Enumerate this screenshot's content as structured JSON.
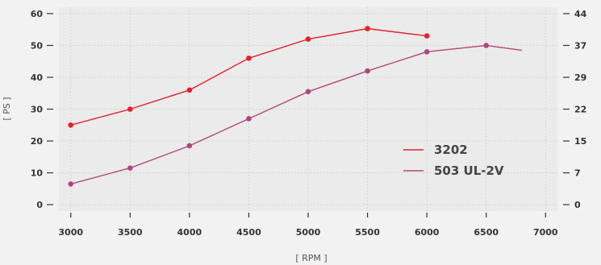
{
  "chart_data": {
    "type": "line",
    "xlabel": "[ RPM ]",
    "ylabel": "[ PS ]",
    "xlim": [
      2900,
      7100
    ],
    "ylim": [
      -2,
      62
    ],
    "x_ticks": [
      3000,
      3500,
      4000,
      4500,
      5000,
      5500,
      6000,
      6500,
      7000
    ],
    "y_ticks": [
      0,
      10,
      20,
      30,
      40,
      50,
      60
    ],
    "y2_tick_labels": [
      "0",
      "7",
      "15",
      "22",
      "29",
      "37",
      "44"
    ],
    "grid": true,
    "legend_position": "lower-right",
    "series": [
      {
        "name": "3202",
        "color": "#e3212f",
        "markers": true,
        "x": [
          3000,
          3500,
          4000,
          4500,
          5000,
          5500,
          6000
        ],
        "y": [
          25,
          30,
          36,
          46,
          52,
          55.3,
          53
        ]
      },
      {
        "name": "503 UL-2V",
        "color": "#b0477a",
        "markers": true,
        "x": [
          3000,
          3500,
          4000,
          4500,
          5000,
          5500,
          6000,
          6500,
          6800
        ],
        "y": [
          6.5,
          11.5,
          18.5,
          27,
          35.5,
          42,
          48,
          50,
          48.5
        ],
        "marker_until_x": 6500
      }
    ]
  }
}
